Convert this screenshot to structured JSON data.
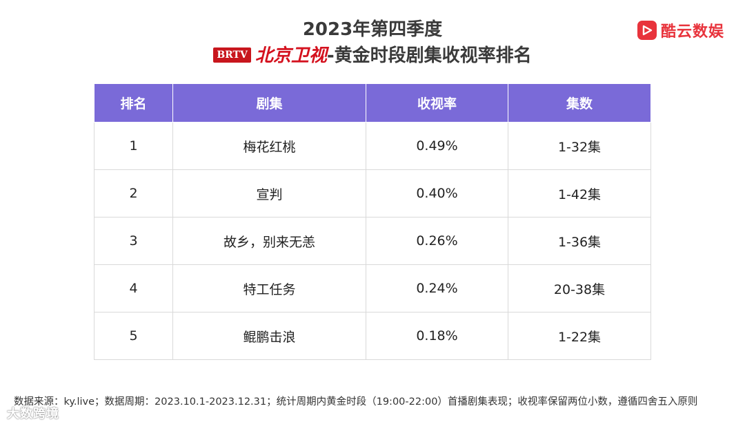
{
  "header": {
    "line1": "2023年第四季度",
    "brtv_badge": "BRTV",
    "channel": "北京卫视",
    "line2_rest": "-黄金时段剧集收视率排名"
  },
  "brand": {
    "name": "酷云数娱",
    "icon": "play-logo-icon",
    "color": "#e8333c"
  },
  "chart_data": {
    "type": "table",
    "columns": [
      "排名",
      "剧集",
      "收视率",
      "集数"
    ],
    "rows": [
      [
        "1",
        "梅花红桃",
        "0.49%",
        "1-32集"
      ],
      [
        "2",
        "宣判",
        "0.40%",
        "1-42集"
      ],
      [
        "3",
        "故乡，别来无恙",
        "0.26%",
        "1-36集"
      ],
      [
        "4",
        "特工任务",
        "0.24%",
        "20-38集"
      ],
      [
        "5",
        "鲲鹏击浪",
        "0.18%",
        "1-22集"
      ]
    ],
    "header_color": "#7a6ad8"
  },
  "footer": "数据来源：ky.live；数据周期：2023.10.1-2023.12.31；统计周期内黄金时段（19:00-22:00）首播剧集表现；收视率保留两位小数，遵循四舍五入原则",
  "watermark": "大数跨境"
}
